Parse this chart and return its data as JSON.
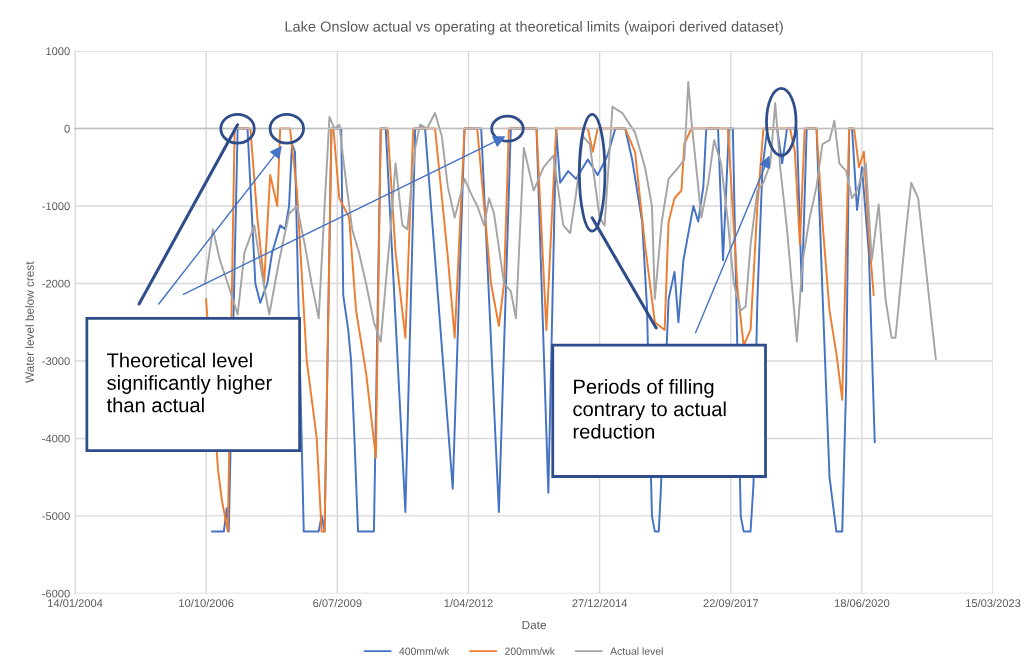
{
  "chart_data": {
    "type": "line",
    "title": "Lake Onslow actual vs operating at theoretical limits (waipori derived dataset)",
    "xlabel": "Date",
    "ylabel": "Water level below crest",
    "xlim": [
      "2004-01-14",
      "2023-03-15"
    ],
    "ylim": [
      -6000,
      1000
    ],
    "xticks": [
      {
        "value": "2004-01-14",
        "label": "14/01/2004"
      },
      {
        "value": "2006-10-10",
        "label": "10/10/2006"
      },
      {
        "value": "2009-07-06",
        "label": "6/07/2009"
      },
      {
        "value": "2012-04-01",
        "label": "1/04/2012"
      },
      {
        "value": "2014-12-27",
        "label": "27/12/2014"
      },
      {
        "value": "2017-09-22",
        "label": "22/09/2017"
      },
      {
        "value": "2020-06-18",
        "label": "18/06/2020"
      },
      {
        "value": "2023-03-15",
        "label": "15/03/2023"
      }
    ],
    "yticks": [
      -6000,
      -5000,
      -4000,
      -3000,
      -2000,
      -1000,
      0,
      1000
    ],
    "grid": true,
    "legend": "bottom",
    "series": [
      {
        "name": "400mm/wk",
        "color": "#4472c4",
        "x": [
          "2006-11-23",
          "2007-02-22",
          "2007-03-16",
          "2007-03-31",
          "2007-06-07",
          "2007-08-21",
          "2007-10-20",
          "2007-11-26",
          "2008-01-19",
          "2008-02-25",
          "2008-04-26",
          "2008-06-03",
          "2008-07-03",
          "2008-07-25",
          "2008-08-17",
          "2008-10-23",
          "2009-02-14",
          "2009-03-08",
          "2009-03-31",
          "2009-05-22",
          "2009-08-05",
          "2009-08-20",
          "2009-09-27",
          "2009-10-19",
          "2009-11-11",
          "2009-12-11",
          "2010-04-11",
          "2010-06-02",
          "2010-07-10",
          "2010-12-07",
          "2011-02-20",
          "2011-05-06",
          "2011-12-03",
          "2012-03-02",
          "2012-07-07",
          "2012-11-19",
          "2013-02-18",
          "2013-09-02",
          "2013-12-01",
          "2014-01-30",
          "2014-03-01",
          "2014-05-01",
          "2014-06-30",
          "2014-09-28",
          "2014-12-12",
          "2015-02-25",
          "2015-04-26",
          "2015-07-10",
          "2015-09-01",
          "2015-11-16",
          "2015-12-23",
          "2016-01-30",
          "2016-02-21",
          "2016-03-22",
          "2016-04-06",
          "2016-05-06",
          "2016-06-05",
          "2016-07-20",
          "2016-08-19",
          "2016-09-26",
          "2016-12-11",
          "2017-01-17",
          "2017-02-25",
          "2017-03-19",
          "2017-06-17",
          "2017-07-25",
          "2017-09-08",
          "2017-10-08",
          "2017-12-07",
          "2017-12-29",
          "2018-02-20",
          "2018-03-14",
          "2018-04-13",
          "2018-05-22",
          "2018-06-28",
          "2018-09-11",
          "2018-10-19",
          "2018-11-25",
          "2019-02-08",
          "2019-03-18",
          "2019-04-24",
          "2019-07-08",
          "2019-08-22",
          "2019-10-15",
          "2019-12-06",
          "2020-01-20",
          "2020-02-19",
          "2020-03-13",
          "2020-04-04",
          "2020-05-12",
          "2020-06-18",
          "2020-08-10",
          "2020-09-24"
        ],
        "values": [
          -5200,
          -5200,
          -4900,
          -5200,
          0,
          0,
          -2000,
          -2250,
          -2000,
          -1600,
          -1250,
          -1300,
          -1000,
          -200,
          -300,
          -5200,
          -5200,
          -5000,
          -5200,
          0,
          0,
          -2150,
          -2600,
          -3000,
          -3900,
          -5200,
          -5200,
          0,
          0,
          -4950,
          0,
          0,
          -4650,
          0,
          0,
          -4950,
          0,
          0,
          -4700,
          0,
          -700,
          -550,
          -650,
          -400,
          -600,
          -350,
          0,
          0,
          -400,
          -1200,
          -2300,
          -5000,
          -5200,
          -5200,
          -4700,
          null,
          -2200,
          -1850,
          -2500,
          -1700,
          -1000,
          -1200,
          -750,
          0,
          0,
          -1700,
          0,
          0,
          -5000,
          -5200,
          -5200,
          -4600,
          -2200,
          -500,
          0,
          0,
          -450,
          0,
          0,
          -2100,
          0,
          0,
          -2100,
          -4500,
          -5200,
          -5200,
          -3300,
          0,
          0,
          -1050,
          -500,
          -1600,
          -4050
        ]
      },
      {
        "name": "200mm/wk",
        "color": "#ed7d31",
        "x": [
          "2006-10-09",
          "2006-11-15",
          "2007-01-08",
          "2007-02-07",
          "2007-03-01",
          "2007-03-24",
          "2007-05-15",
          "2007-09-12",
          "2007-11-04",
          "2007-12-26",
          "2008-02-10",
          "2008-04-04",
          "2008-04-26",
          "2008-07-10",
          "2008-09-01",
          "2008-11-15",
          "2009-01-30",
          "2009-03-08",
          "2009-03-31",
          "2009-05-22",
          "2009-06-06",
          "2009-07-21",
          "2009-10-04",
          "2009-11-26",
          "2010-02-10",
          "2010-04-26",
          "2010-06-02",
          "2010-07-25",
          "2010-09-23",
          "2010-12-07",
          "2011-02-05",
          "2011-05-06",
          "2011-07-21",
          "2011-10-26",
          "2011-12-18",
          "2012-03-02",
          "2012-06-07",
          "2012-09-20",
          "2012-11-19",
          "2012-12-28",
          "2013-02-03",
          "2013-09-02",
          "2013-11-16",
          "2014-01-30",
          "2014-09-28",
          "2014-11-05",
          "2014-12-12",
          "2015-07-10",
          "2015-09-23",
          "2015-12-08",
          "2016-02-21",
          "2016-05-06",
          "2016-06-05",
          "2016-07-20",
          "2016-09-11",
          "2016-10-03",
          "2016-11-26",
          "2017-08-31",
          "2017-11-14",
          "2017-12-29",
          "2018-02-20",
          "2018-04-13",
          "2018-05-29",
          "2018-12-18",
          "2019-01-24",
          "2019-03-03",
          "2019-04-09",
          "2019-07-08",
          "2019-08-22",
          "2019-10-15",
          "2019-12-06",
          "2020-01-20",
          "2020-03-13",
          "2020-04-19",
          "2020-05-27",
          "2020-07-03",
          "2020-08-10",
          "2020-09-16"
        ],
        "values": [
          -2200,
          null,
          -4400,
          -4800,
          null,
          -5200,
          0,
          0,
          -1150,
          -2000,
          -600,
          -1000,
          0,
          0,
          -800,
          -3000,
          -4000,
          -5200,
          -5200,
          0,
          0,
          -900,
          -1150,
          -2350,
          -3150,
          -4250,
          0,
          0,
          -1600,
          -2700,
          0,
          0,
          0,
          -1650,
          -2700,
          0,
          0,
          -2000,
          -2550,
          -2000,
          0,
          0,
          -2600,
          0,
          0,
          -300,
          0,
          0,
          -300,
          -1500,
          -2500,
          -2600,
          -1200,
          -900,
          -800,
          -200,
          0,
          0,
          -2100,
          -2800,
          -2600,
          -1000,
          0,
          0,
          -300,
          -1500,
          0,
          0,
          -1200,
          -2350,
          -2900,
          -3500,
          0,
          0,
          -500,
          -300,
          -1400,
          -2150
        ]
      },
      {
        "name": "Actual level",
        "color": "#a5a5a5",
        "x": [
          "2006-10-01",
          "2006-11-30",
          "2007-01-23",
          "2007-03-24",
          "2007-06-07",
          "2007-07-29",
          "2007-10-12",
          "2007-12-11",
          "2008-02-03",
          "2008-04-19",
          "2008-07-03",
          "2008-09-01",
          "2008-10-31",
          "2008-12-22",
          "2009-02-14",
          "2009-03-31",
          "2009-05-07",
          "2009-06-14",
          "2009-07-21",
          "2009-08-28",
          "2009-10-27",
          "2009-12-18",
          "2010-02-10",
          "2010-04-11",
          "2010-06-02",
          "2010-07-10",
          "2010-08-16",
          "2010-09-23",
          "2010-11-14",
          "2010-12-22",
          "2011-02-20",
          "2011-03-29",
          "2011-05-21",
          "2011-07-21",
          "2011-09-11",
          "2011-10-26",
          "2011-12-18",
          "2012-03-02",
          "2012-04-23",
          "2012-06-07",
          "2012-07-30",
          "2012-09-05",
          "2012-10-13",
          "2012-12-28",
          "2013-02-18",
          "2013-03-29",
          "2013-05-28",
          "2013-08-11",
          "2013-10-25",
          "2014-01-08",
          "2014-03-25",
          "2014-05-16",
          "2014-06-30",
          "2014-08-22",
          "2014-10-13",
          "2014-12-27",
          "2015-02-03",
          "2015-04-04",
          "2015-06-18",
          "2015-09-23",
          "2015-12-08",
          "2016-01-30",
          "2016-02-21",
          "2016-04-14",
          "2016-06-05",
          "2016-08-19",
          "2016-10-03",
          "2016-11-02",
          "2016-11-26",
          "2017-02-10",
          "2017-04-03",
          "2017-05-18",
          "2017-07-10",
          "2017-08-31",
          "2017-10-15",
          "2017-12-07",
          "2018-01-13",
          "2018-02-20",
          "2018-04-13",
          "2018-05-29",
          "2018-07-21",
          "2018-08-27",
          "2018-10-04",
          "2018-11-25",
          "2019-02-08",
          "2019-03-25",
          "2019-05-17",
          "2019-07-08",
          "2019-08-22",
          "2019-10-15",
          "2019-11-21",
          "2019-12-29",
          "2020-02-19",
          "2020-04-04",
          "2020-05-12",
          "2020-07-18",
          "2020-09-01",
          "2020-10-24",
          "2020-12-15",
          "2021-01-30",
          "2021-03-01",
          "2021-05-15",
          "2021-06-29",
          "2021-08-21",
          "2021-10-12",
          "2021-11-26",
          "2022-01-03"
        ],
        "values": [
          -2000,
          -1300,
          -1700,
          -2000,
          -2400,
          -1600,
          -1250,
          -1900,
          -2400,
          -1700,
          -1100,
          -1000,
          -1500,
          -2000,
          -2450,
          -1000,
          150,
          0,
          50,
          -500,
          -1300,
          -1600,
          -2000,
          -2500,
          -2750,
          -2000,
          -1300,
          -450,
          -1250,
          -1300,
          -250,
          50,
          0,
          200,
          -100,
          -750,
          -1150,
          -650,
          -850,
          -1000,
          -1250,
          -900,
          -1100,
          -2000,
          -2100,
          -2450,
          -250,
          -800,
          -500,
          -350,
          -1250,
          -1350,
          -850,
          -100,
          -200,
          -1150,
          -1250,
          280,
          200,
          -50,
          -500,
          -1000,
          -2200,
          -1200,
          -650,
          -500,
          -400,
          600,
          100,
          -1150,
          -700,
          -150,
          -450,
          -1200,
          -2000,
          -2350,
          -2300,
          -1500,
          -800,
          -700,
          -450,
          330,
          -500,
          -1300,
          -2750,
          -1700,
          -1150,
          -750,
          -200,
          -150,
          100,
          -450,
          -550,
          -900,
          -800,
          -450,
          -1700,
          -980,
          -2200,
          -2700,
          -2700,
          -1400,
          -700,
          -900,
          -1700,
          -2400,
          -2980
        ]
      }
    ],
    "annotations": [
      "Theoretical level significantly higher than actual",
      "Periods of filling contrary to actual reduction"
    ]
  }
}
